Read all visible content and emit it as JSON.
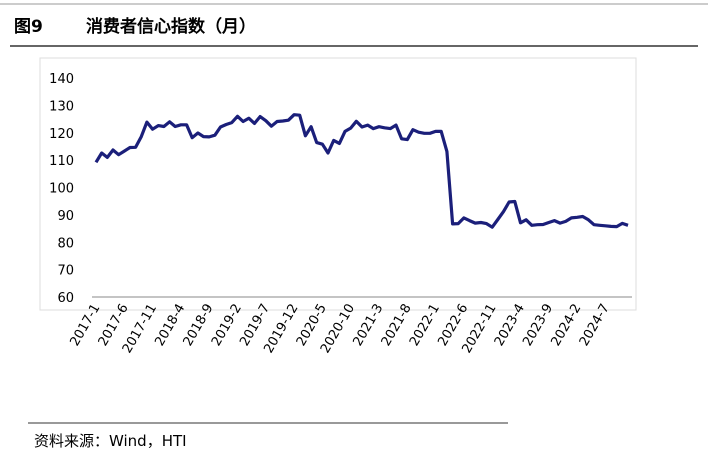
{
  "chart_data": {
    "type": "line",
    "figure_label": "图9",
    "title": "消费者信心指数（月）",
    "source": "资料来源：Wind，HTI",
    "categories": [
      "2017-1",
      null,
      null,
      null,
      null,
      "2017-6",
      null,
      null,
      null,
      null,
      "2017-11",
      null,
      null,
      null,
      null,
      "2018-4",
      null,
      null,
      null,
      null,
      "2018-9",
      null,
      null,
      null,
      null,
      "2019-2",
      null,
      null,
      null,
      null,
      "2019-7",
      null,
      null,
      null,
      null,
      "2019-12",
      null,
      null,
      null,
      null,
      "2020-5",
      null,
      null,
      null,
      null,
      "2020-10",
      null,
      null,
      null,
      null,
      "2021-3",
      null,
      null,
      null,
      null,
      "2021-8",
      null,
      null,
      null,
      null,
      "2022-1",
      null,
      null,
      null,
      null,
      "2022-6",
      null,
      null,
      null,
      null,
      "2022-11",
      null,
      null,
      null,
      null,
      "2023-4",
      null,
      null,
      null,
      null,
      "2023-9",
      null,
      null,
      null,
      null,
      "2024-2",
      null,
      null,
      null,
      null,
      "2024-7",
      null,
      null,
      null,
      null
    ],
    "series": [
      {
        "name": "消费者信心指数",
        "color": "#1b1f7a",
        "values": [
          109.2,
          112.6,
          111.0,
          113.7,
          112.0,
          113.3,
          114.6,
          114.7,
          118.6,
          123.9,
          121.3,
          122.6,
          122.3,
          124.0,
          122.3,
          122.9,
          122.9,
          118.2,
          119.9,
          118.6,
          118.5,
          119.1,
          122.1,
          123.0,
          123.7,
          126.0,
          124.1,
          125.3,
          123.4,
          125.9,
          124.4,
          122.4,
          124.1,
          124.3,
          124.6,
          126.6,
          126.4,
          118.9,
          122.2,
          116.4,
          115.8,
          112.6,
          117.2,
          116.1,
          120.5,
          121.7,
          124.2,
          122.1,
          122.8,
          121.5,
          122.2,
          121.8,
          121.5,
          122.8,
          117.8,
          117.5,
          121.1,
          120.2,
          119.8,
          119.8,
          120.5,
          120.5,
          113.2,
          86.7,
          86.8,
          88.9,
          87.9,
          87.0,
          87.2,
          86.8,
          85.5,
          88.3,
          91.2,
          94.7,
          94.9,
          87.1,
          88.2,
          86.2,
          86.4,
          86.5,
          87.2,
          87.9,
          87.0,
          87.6,
          88.9,
          89.1,
          89.4,
          88.2,
          86.4,
          86.2,
          86.0,
          85.8,
          85.7,
          86.9,
          86.2
        ]
      }
    ],
    "ylim": [
      60,
      140
    ],
    "yticks": [
      60,
      70,
      80,
      90,
      100,
      110,
      120,
      130,
      140
    ]
  }
}
